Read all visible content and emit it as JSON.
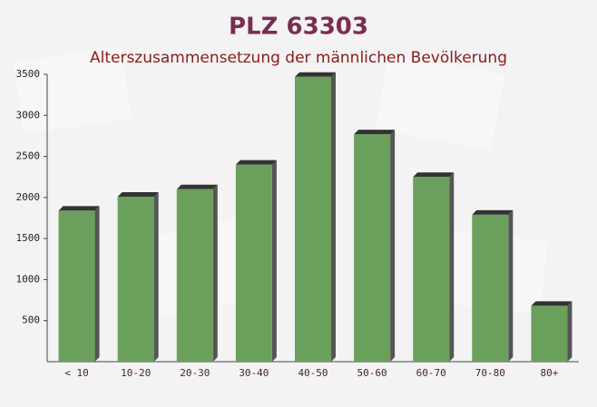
{
  "chart_data": {
    "type": "bar",
    "title": "PLZ 63303",
    "subtitle": "Alterszusammensetzung der männlichen Bevölkerung",
    "categories": [
      "< 10",
      "10-20",
      "20-30",
      "30-40",
      "40-50",
      "50-60",
      "60-70",
      "70-80",
      "80+"
    ],
    "values": [
      1840,
      2010,
      2100,
      2400,
      3470,
      2770,
      2250,
      1790,
      680
    ],
    "color": "#6a9f5c",
    "ylim": [
      0,
      3500
    ],
    "yticks": [
      500,
      1000,
      1500,
      2000,
      2500,
      3000,
      3500
    ],
    "grid": false
  }
}
